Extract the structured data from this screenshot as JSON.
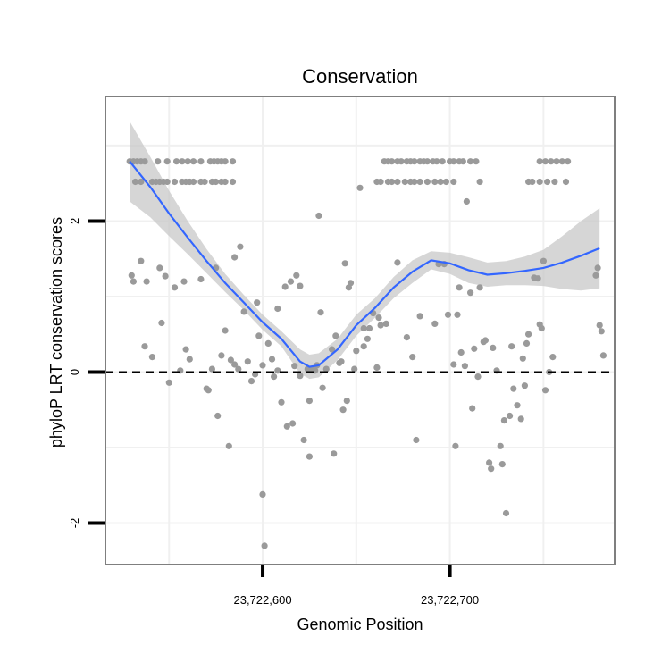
{
  "chart_data": {
    "type": "scatter",
    "title": "Conservation",
    "xlabel": "Genomic Position",
    "ylabel": "phyloP LRT conservation scores",
    "xlim": [
      23722516,
      23722788
    ],
    "ylim": [
      -2.55,
      3.65
    ],
    "x_ticks": [
      23722600,
      23722700
    ],
    "x_tick_labels": [
      "23,722,600",
      "23,722,700"
    ],
    "y_ticks": [
      -2,
      0,
      2
    ],
    "y_tick_labels": [
      "-2",
      "0",
      "2"
    ],
    "reference_line": {
      "y": 0,
      "style": "dashed"
    },
    "grid": true,
    "colors": {
      "points": "#9a9a9a",
      "smooth": "#3366ff",
      "ribbon": "#c8c8c8",
      "frame": "#7f7f7f",
      "grid": "#f0f0f0"
    },
    "smooth": {
      "x": [
        23722529,
        23722540,
        23722550,
        23722560,
        23722570,
        23722580,
        23722590,
        23722600,
        23722610,
        23722620,
        23722625,
        23722630,
        23722640,
        23722650,
        23722660,
        23722670,
        23722680,
        23722690,
        23722700,
        23722710,
        23722720,
        23722730,
        23722740,
        23722750,
        23722760,
        23722770,
        23722780
      ],
      "y": [
        2.79,
        2.45,
        2.1,
        1.78,
        1.47,
        1.18,
        0.92,
        0.66,
        0.44,
        0.14,
        0.07,
        0.09,
        0.3,
        0.62,
        0.85,
        1.12,
        1.33,
        1.48,
        1.44,
        1.35,
        1.29,
        1.31,
        1.34,
        1.38,
        1.45,
        1.54,
        1.64
      ],
      "upper": [
        3.32,
        2.85,
        2.4,
        2.0,
        1.63,
        1.3,
        1.02,
        0.76,
        0.54,
        0.3,
        0.23,
        0.25,
        0.44,
        0.76,
        0.98,
        1.26,
        1.48,
        1.6,
        1.58,
        1.52,
        1.45,
        1.47,
        1.53,
        1.62,
        1.8,
        2.0,
        2.17
      ],
      "lower": [
        2.26,
        2.05,
        1.8,
        1.56,
        1.31,
        1.06,
        0.82,
        0.56,
        0.34,
        -0.02,
        -0.09,
        -0.07,
        0.16,
        0.48,
        0.72,
        0.98,
        1.18,
        1.36,
        1.3,
        1.18,
        1.13,
        1.15,
        1.15,
        1.14,
        1.1,
        1.08,
        1.11
      ]
    },
    "points": [
      [
        23722529,
        2.79
      ],
      [
        23722531,
        2.79
      ],
      [
        23722533,
        2.79
      ],
      [
        23722535,
        2.79
      ],
      [
        23722537,
        2.79
      ],
      [
        23722544,
        2.79
      ],
      [
        23722549,
        2.79
      ],
      [
        23722554,
        2.79
      ],
      [
        23722557,
        2.79
      ],
      [
        23722560,
        2.79
      ],
      [
        23722563,
        2.79
      ],
      [
        23722567,
        2.79
      ],
      [
        23722572,
        2.79
      ],
      [
        23722574,
        2.79
      ],
      [
        23722576,
        2.79
      ],
      [
        23722578,
        2.79
      ],
      [
        23722580,
        2.79
      ],
      [
        23722584,
        2.79
      ],
      [
        23722532,
        2.52
      ],
      [
        23722535,
        2.52
      ],
      [
        23722541,
        2.52
      ],
      [
        23722543,
        2.52
      ],
      [
        23722545,
        2.52
      ],
      [
        23722547,
        2.52
      ],
      [
        23722549,
        2.52
      ],
      [
        23722553,
        2.52
      ],
      [
        23722557,
        2.52
      ],
      [
        23722559,
        2.52
      ],
      [
        23722561,
        2.52
      ],
      [
        23722563,
        2.52
      ],
      [
        23722567,
        2.52
      ],
      [
        23722569,
        2.52
      ],
      [
        23722573,
        2.52
      ],
      [
        23722575,
        2.52
      ],
      [
        23722578,
        2.52
      ],
      [
        23722580,
        2.52
      ],
      [
        23722584,
        2.52
      ],
      [
        23722530,
        1.28
      ],
      [
        23722531,
        1.2
      ],
      [
        23722535,
        1.47
      ],
      [
        23722537,
        0.34
      ],
      [
        23722538,
        1.2
      ],
      [
        23722541,
        0.2
      ],
      [
        23722545,
        1.38
      ],
      [
        23722546,
        0.65
      ],
      [
        23722548,
        1.27
      ],
      [
        23722550,
        -0.14
      ],
      [
        23722553,
        1.12
      ],
      [
        23722556,
        0.02
      ],
      [
        23722558,
        1.2
      ],
      [
        23722559,
        0.3
      ],
      [
        23722561,
        0.17
      ],
      [
        23722567,
        1.23
      ],
      [
        23722570,
        -0.22
      ],
      [
        23722571,
        -0.24
      ],
      [
        23722573,
        0.04
      ],
      [
        23722575,
        1.38
      ],
      [
        23722576,
        -0.58
      ],
      [
        23722578,
        0.22
      ],
      [
        23722580,
        0.55
      ],
      [
        23722582,
        -0.98
      ],
      [
        23722583,
        0.16
      ],
      [
        23722585,
        1.52
      ],
      [
        23722585,
        0.1
      ],
      [
        23722587,
        0.04
      ],
      [
        23722588,
        1.66
      ],
      [
        23722590,
        0.8
      ],
      [
        23722592,
        0.14
      ],
      [
        23722594,
        -0.12
      ],
      [
        23722596,
        -0.03
      ],
      [
        23722597,
        0.92
      ],
      [
        23722598,
        0.48
      ],
      [
        23722600,
        -1.62
      ],
      [
        23722600,
        0.09
      ],
      [
        23722603,
        0.38
      ],
      [
        23722605,
        0.17
      ],
      [
        23722606,
        -0.06
      ],
      [
        23722608,
        0.02
      ],
      [
        23722608,
        0.84
      ],
      [
        23722610,
        -0.4
      ],
      [
        23722612,
        1.13
      ],
      [
        23722613,
        -0.72
      ],
      [
        23722615,
        1.2
      ],
      [
        23722616,
        -0.68
      ],
      [
        23722617,
        0.08
      ],
      [
        23722618,
        1.28
      ],
      [
        23722620,
        1.14
      ],
      [
        23722620,
        -0.05
      ],
      [
        23722622,
        -0.9
      ],
      [
        23722624,
        0.04
      ],
      [
        23722625,
        -1.12
      ],
      [
        23722625,
        -0.38
      ],
      [
        23722626,
        0.04
      ],
      [
        23722628,
        0.02
      ],
      [
        23722629,
        0.09
      ],
      [
        23722630,
        2.07
      ],
      [
        23722631,
        0.79
      ],
      [
        23722632,
        -0.21
      ],
      [
        23722634,
        0.04
      ],
      [
        23722637,
        0.3
      ],
      [
        23722638,
        -1.08
      ],
      [
        23722639,
        0.48
      ],
      [
        23722641,
        0.12
      ],
      [
        23722642,
        0.14
      ],
      [
        23722643,
        -0.5
      ],
      [
        23722644,
        1.44
      ],
      [
        23722645,
        -0.38
      ],
      [
        23722646,
        1.12
      ],
      [
        23722647,
        1.18
      ],
      [
        23722649,
        0.04
      ],
      [
        23722650,
        0.28
      ],
      [
        23722652,
        2.44
      ],
      [
        23722654,
        0.34
      ],
      [
        23722654,
        0.58
      ],
      [
        23722656,
        0.44
      ],
      [
        23722657,
        0.58
      ],
      [
        23722659,
        0.78
      ],
      [
        23722661,
        0.06
      ],
      [
        23722662,
        0.72
      ],
      [
        23722663,
        0.62
      ],
      [
        23722666,
        0.64
      ],
      [
        23722672,
        1.45
      ],
      [
        23722677,
        0.46
      ],
      [
        23722680,
        0.2
      ],
      [
        23722682,
        -0.9
      ],
      [
        23722684,
        0.74
      ],
      [
        23722692,
        0.64
      ],
      [
        23722694,
        1.43
      ],
      [
        23722697,
        1.43
      ],
      [
        23722699,
        0.76
      ],
      [
        23722702,
        0.1
      ],
      [
        23722703,
        -0.98
      ],
      [
        23722705,
        1.12
      ],
      [
        23722706,
        0.26
      ],
      [
        23722708,
        0.08
      ],
      [
        23722709,
        2.26
      ],
      [
        23722711,
        1.05
      ],
      [
        23722712,
        -0.48
      ],
      [
        23722713,
        0.31
      ],
      [
        23722715,
        -0.06
      ],
      [
        23722716,
        1.12
      ],
      [
        23722718,
        0.4
      ],
      [
        23722719,
        0.42
      ],
      [
        23722721,
        -1.2
      ],
      [
        23722722,
        -1.28
      ],
      [
        23722723,
        0.32
      ],
      [
        23722725,
        0.02
      ],
      [
        23722727,
        -0.98
      ],
      [
        23722728,
        -1.22
      ],
      [
        23722729,
        -0.64
      ],
      [
        23722730,
        -1.87
      ],
      [
        23722732,
        -0.58
      ],
      [
        23722733,
        0.34
      ],
      [
        23722734,
        -0.22
      ],
      [
        23722736,
        -0.44
      ],
      [
        23722738,
        -0.62
      ],
      [
        23722741,
        0.38
      ],
      [
        23722742,
        0.5
      ],
      [
        23722745,
        1.25
      ],
      [
        23722747,
        1.24
      ],
      [
        23722748,
        0.63
      ],
      [
        23722749,
        0.58
      ],
      [
        23722750,
        1.47
      ],
      [
        23722751,
        -0.24
      ],
      [
        23722753,
        0.0
      ],
      [
        23722755,
        0.2
      ],
      [
        23722778,
        1.28
      ],
      [
        23722779,
        1.38
      ],
      [
        23722780,
        0.62
      ],
      [
        23722781,
        0.54
      ],
      [
        23722782,
        0.22
      ],
      [
        23722601,
        -2.3
      ],
      [
        23722704,
        0.76
      ],
      [
        23722739,
        0.18
      ],
      [
        23722740,
        -0.18
      ],
      [
        23722665,
        2.79
      ],
      [
        23722667,
        2.79
      ],
      [
        23722669,
        2.79
      ],
      [
        23722672,
        2.79
      ],
      [
        23722674,
        2.79
      ],
      [
        23722677,
        2.79
      ],
      [
        23722679,
        2.79
      ],
      [
        23722681,
        2.79
      ],
      [
        23722684,
        2.79
      ],
      [
        23722686,
        2.79
      ],
      [
        23722688,
        2.79
      ],
      [
        23722691,
        2.79
      ],
      [
        23722693,
        2.79
      ],
      [
        23722696,
        2.79
      ],
      [
        23722700,
        2.79
      ],
      [
        23722702,
        2.79
      ],
      [
        23722705,
        2.79
      ],
      [
        23722707,
        2.79
      ],
      [
        23722711,
        2.79
      ],
      [
        23722714,
        2.79
      ],
      [
        23722748,
        2.79
      ],
      [
        23722751,
        2.79
      ],
      [
        23722754,
        2.79
      ],
      [
        23722757,
        2.79
      ],
      [
        23722760,
        2.79
      ],
      [
        23722763,
        2.79
      ],
      [
        23722661,
        2.52
      ],
      [
        23722663,
        2.52
      ],
      [
        23722667,
        2.52
      ],
      [
        23722669,
        2.52
      ],
      [
        23722672,
        2.52
      ],
      [
        23722676,
        2.52
      ],
      [
        23722679,
        2.52
      ],
      [
        23722681,
        2.52
      ],
      [
        23722684,
        2.52
      ],
      [
        23722688,
        2.52
      ],
      [
        23722692,
        2.52
      ],
      [
        23722695,
        2.52
      ],
      [
        23722698,
        2.52
      ],
      [
        23722702,
        2.52
      ],
      [
        23722716,
        2.52
      ],
      [
        23722742,
        2.52
      ],
      [
        23722744,
        2.52
      ],
      [
        23722748,
        2.52
      ],
      [
        23722752,
        2.52
      ],
      [
        23722756,
        2.52
      ],
      [
        23722762,
        2.52
      ]
    ]
  }
}
